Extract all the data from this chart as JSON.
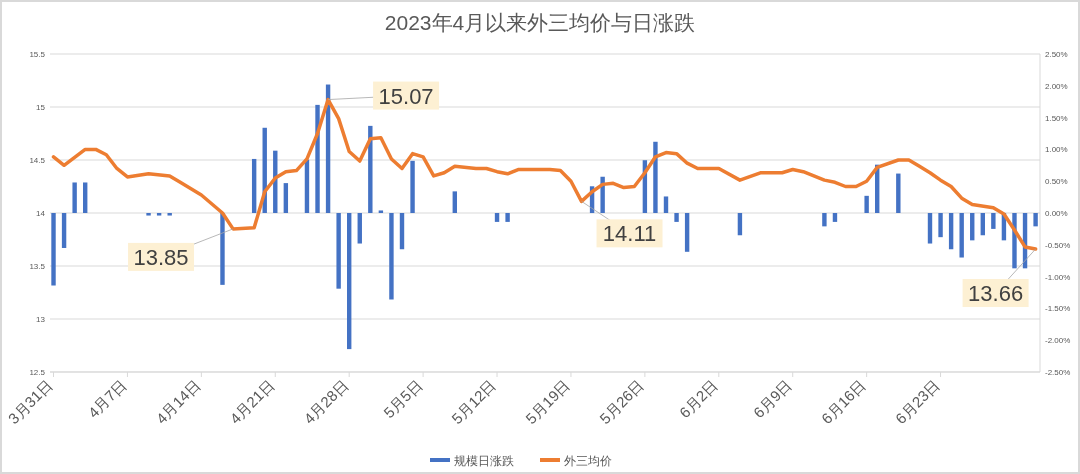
{
  "chart_data": {
    "type": "bar",
    "title": "2023年4月以来外三均价与日涨跌",
    "xlim": [
      "2023-03-30T16:00",
      "2023-07-02T10:00"
    ],
    "xticks": [
      {
        "value": "2023-03-31",
        "label": "3月31日"
      },
      {
        "value": "2023-04-07",
        "label": "4月7日"
      },
      {
        "value": "2023-04-14",
        "label": "4月14日"
      },
      {
        "value": "2023-04-21",
        "label": "4月21日"
      },
      {
        "value": "2023-04-28",
        "label": "4月28日"
      },
      {
        "value": "2023-05-05",
        "label": "5月5日"
      },
      {
        "value": "2023-05-12",
        "label": "5月12日"
      },
      {
        "value": "2023-05-19",
        "label": "5月19日"
      },
      {
        "value": "2023-05-26",
        "label": "5月26日"
      },
      {
        "value": "2023-06-02",
        "label": "6月2日"
      },
      {
        "value": "2023-06-09",
        "label": "6月9日"
      },
      {
        "value": "2023-06-16",
        "label": "6月16日"
      },
      {
        "value": "2023-06-23",
        "label": "6月23日"
      }
    ],
    "ylim": [
      12.5,
      15.5
    ],
    "yticks": [
      12.5,
      13,
      13.5,
      14,
      14.5,
      15,
      15.5
    ],
    "y2lim": [
      -2.5,
      2.5
    ],
    "y2ticks": [
      {
        "value": -2.5,
        "label": "-2.50%"
      },
      {
        "value": -2,
        "label": "-2.00%"
      },
      {
        "value": -1.5,
        "label": "-1.50%"
      },
      {
        "value": -1,
        "label": "-1.00%"
      },
      {
        "value": -0.5,
        "label": "-0.50%"
      },
      {
        "value": 0,
        "label": "0.00%"
      },
      {
        "value": 0.5,
        "label": "0.50%"
      },
      {
        "value": 1,
        "label": "1.00%"
      },
      {
        "value": 1.5,
        "label": "1.50%"
      },
      {
        "value": 2,
        "label": "2.00%"
      },
      {
        "value": 2.5,
        "label": "2.50%"
      }
    ],
    "grid": "y",
    "legend": "bottom",
    "series": [
      {
        "name": "规模日涨跌",
        "axis": "y2",
        "color": "#4472c4",
        "x": [
          "2023-03-31",
          "2023-04-01",
          "2023-04-02",
          "2023-04-03",
          "2023-04-09",
          "2023-04-10",
          "2023-04-11",
          "2023-04-16",
          "2023-04-19",
          "2023-04-20",
          "2023-04-21",
          "2023-04-22",
          "2023-04-24",
          "2023-04-25",
          "2023-04-26",
          "2023-04-27",
          "2023-04-28",
          "2023-04-29",
          "2023-04-30",
          "2023-05-01",
          "2023-05-02",
          "2023-05-03",
          "2023-05-04",
          "2023-05-08",
          "2023-05-12",
          "2023-05-13",
          "2023-05-21",
          "2023-05-22",
          "2023-05-26",
          "2023-05-27",
          "2023-05-28",
          "2023-05-29",
          "2023-05-30",
          "2023-06-04",
          "2023-06-12",
          "2023-06-13",
          "2023-06-16",
          "2023-06-17",
          "2023-06-19",
          "2023-06-22",
          "2023-06-23",
          "2023-06-24",
          "2023-06-25",
          "2023-06-26",
          "2023-06-27",
          "2023-06-28",
          "2023-06-29",
          "2023-06-30",
          "2023-07-01",
          "2023-07-02"
        ],
        "values": [
          -1.14,
          -0.55,
          0.48,
          0.48,
          -0.04,
          -0.04,
          -0.04,
          -1.13,
          0.85,
          1.34,
          0.98,
          0.47,
          0.84,
          1.7,
          2.02,
          -1.19,
          -2.14,
          -0.48,
          1.37,
          0.04,
          -1.36,
          -0.57,
          0.82,
          0.34,
          -0.14,
          -0.14,
          0.42,
          0.57,
          0.83,
          1.12,
          0.26,
          -0.14,
          -0.61,
          -0.35,
          -0.21,
          -0.14,
          0.27,
          0.76,
          0.62,
          -0.48,
          -0.38,
          -0.57,
          -0.7,
          -0.43,
          -0.35,
          -0.25,
          -0.43,
          -0.87,
          -0.87,
          -0.21
        ]
      },
      {
        "name": "外三均价",
        "type": "line",
        "color": "#ed7d31",
        "x": [
          "2023-03-31",
          "2023-04-01",
          "2023-04-03",
          "2023-04-04",
          "2023-04-05",
          "2023-04-06",
          "2023-04-07",
          "2023-04-09",
          "2023-04-11",
          "2023-04-12",
          "2023-04-14",
          "2023-04-16",
          "2023-04-17",
          "2023-04-19",
          "2023-04-20",
          "2023-04-21",
          "2023-04-22",
          "2023-04-23",
          "2023-04-24",
          "2023-04-25",
          "2023-04-26",
          "2023-04-27",
          "2023-04-28",
          "2023-04-29",
          "2023-04-30",
          "2023-05-01",
          "2023-05-02",
          "2023-05-03",
          "2023-05-04",
          "2023-05-05",
          "2023-05-06",
          "2023-05-07",
          "2023-05-08",
          "2023-05-10",
          "2023-05-11",
          "2023-05-12",
          "2023-05-13",
          "2023-05-14",
          "2023-05-17",
          "2023-05-18",
          "2023-05-19",
          "2023-05-20",
          "2023-05-21",
          "2023-05-22",
          "2023-05-23",
          "2023-05-24",
          "2023-05-25",
          "2023-05-26",
          "2023-05-27",
          "2023-05-28",
          "2023-05-29",
          "2023-05-30",
          "2023-05-31",
          "2023-06-02",
          "2023-06-04",
          "2023-06-06",
          "2023-06-08",
          "2023-06-09",
          "2023-06-10",
          "2023-06-12",
          "2023-06-13",
          "2023-06-14",
          "2023-06-15",
          "2023-06-16",
          "2023-06-17",
          "2023-06-19",
          "2023-06-20",
          "2023-06-21",
          "2023-06-22",
          "2023-06-23",
          "2023-06-24",
          "2023-06-25",
          "2023-06-26",
          "2023-06-28",
          "2023-06-29",
          "2023-06-30",
          "2023-07-01",
          "2023-07-02"
        ],
        "values": [
          14.53,
          14.45,
          14.6,
          14.6,
          14.55,
          14.42,
          14.34,
          14.37,
          14.35,
          14.29,
          14.17,
          14.0,
          13.85,
          13.86,
          14.2,
          14.33,
          14.39,
          14.4,
          14.51,
          14.75,
          15.07,
          14.89,
          14.58,
          14.49,
          14.7,
          14.71,
          14.51,
          14.42,
          14.56,
          14.53,
          14.35,
          14.38,
          14.44,
          14.42,
          14.42,
          14.39,
          14.37,
          14.41,
          14.41,
          14.4,
          14.3,
          14.11,
          14.2,
          14.27,
          14.28,
          14.24,
          14.25,
          14.38,
          14.53,
          14.57,
          14.56,
          14.47,
          14.42,
          14.42,
          14.31,
          14.38,
          14.38,
          14.41,
          14.39,
          14.31,
          14.29,
          14.25,
          14.25,
          14.3,
          14.43,
          14.5,
          14.5,
          14.44,
          14.38,
          14.31,
          14.25,
          14.14,
          14.08,
          14.05,
          13.99,
          13.84,
          13.68,
          13.66
        ],
        "value_labels": [
          null,
          null,
          null,
          null,
          null,
          null,
          null,
          null,
          null,
          null,
          null,
          null,
          "13.85",
          null,
          null,
          null,
          null,
          null,
          null,
          null,
          "15.07",
          null,
          null,
          null,
          null,
          null,
          null,
          null,
          null,
          null,
          null,
          null,
          null,
          null,
          null,
          null,
          null,
          null,
          null,
          null,
          null,
          "14.11",
          null,
          null,
          null,
          null,
          null,
          null,
          null,
          null,
          null,
          null,
          null,
          null,
          null,
          null,
          null,
          null,
          null,
          null,
          null,
          null,
          null,
          null,
          null,
          null,
          null,
          null,
          null,
          null,
          null,
          null,
          null,
          null,
          null,
          null,
          null,
          "13.66"
        ]
      }
    ]
  }
}
